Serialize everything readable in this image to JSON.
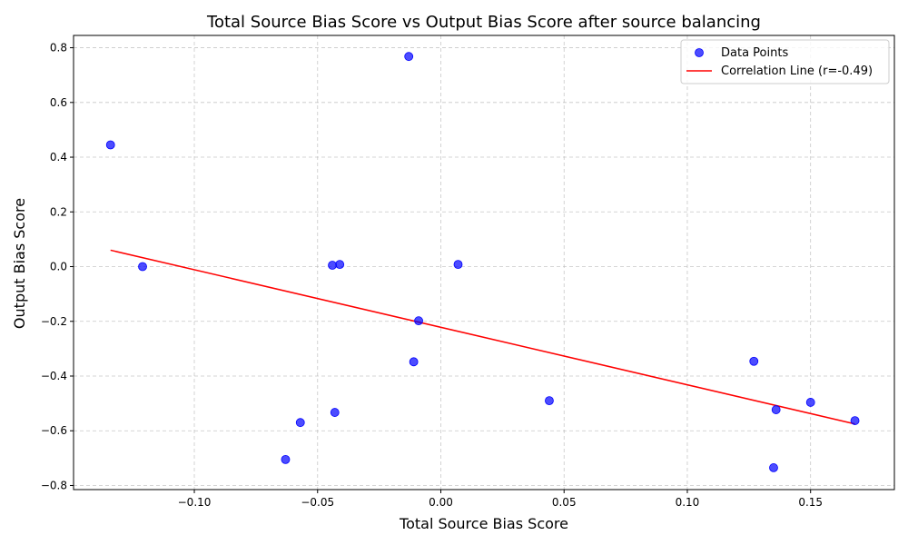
{
  "chart_data": {
    "type": "scatter",
    "title": "Total Source Bias Score vs Output Bias Score after source balancing",
    "xlabel": "Total Source Bias Score",
    "ylabel": "Output Bias Score",
    "xlim": [
      -0.149,
      0.184
    ],
    "ylim": [
      -0.815,
      0.845
    ],
    "x_ticks": [
      -0.1,
      -0.05,
      0.0,
      0.05,
      0.1,
      0.15
    ],
    "x_tick_labels": [
      "−0.10",
      "−0.05",
      "0.00",
      "0.05",
      "0.10",
      "0.15"
    ],
    "y_ticks": [
      -0.8,
      -0.6,
      -0.4,
      -0.2,
      0.0,
      0.2,
      0.4,
      0.6,
      0.8
    ],
    "y_tick_labels": [
      "−0.8",
      "−0.6",
      "−0.4",
      "−0.2",
      "0.0",
      "0.2",
      "0.4",
      "0.6",
      "0.8"
    ],
    "grid": true,
    "legend_position": "top-right",
    "series": [
      {
        "name": "Data Points",
        "kind": "scatter",
        "color": "#0000ff",
        "x": [
          -0.134,
          -0.121,
          -0.063,
          -0.057,
          -0.044,
          -0.043,
          -0.041,
          -0.013,
          -0.011,
          -0.009,
          0.007,
          0.044,
          0.127,
          0.135,
          0.136,
          0.15,
          0.168
        ],
        "y": [
          0.445,
          0.0,
          -0.705,
          -0.57,
          0.005,
          -0.533,
          0.008,
          0.768,
          -0.348,
          -0.198,
          0.008,
          -0.49,
          -0.346,
          -0.735,
          -0.523,
          -0.496,
          -0.563
        ]
      },
      {
        "name": "Correlation Line (r=-0.49)",
        "kind": "line",
        "color": "#ff0000",
        "x": [
          -0.134,
          0.168
        ],
        "y": [
          0.06,
          -0.575
        ]
      }
    ]
  }
}
